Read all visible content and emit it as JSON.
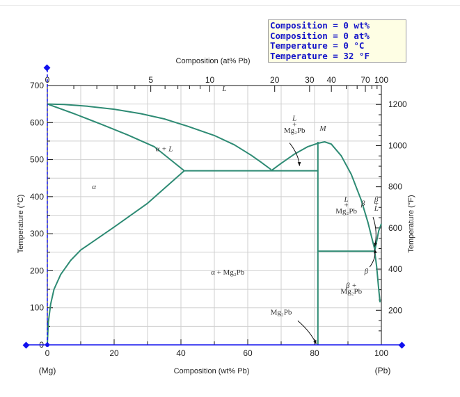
{
  "readout": {
    "wt": "Composition = 0 wt%",
    "at": "Composition = 0 at%",
    "tc": "Temperature = 0 °C",
    "tf": "Temperature = 32 °F"
  },
  "colors": {
    "phase_line": "#2e8b74",
    "grid": "#cfcfcf",
    "marker": "#1010ee",
    "readout_text": "#1515c8",
    "readout_bg": "#fefee4"
  },
  "chart_data": {
    "type": "line",
    "x_axis": {
      "label": "Composition (wt% Pb)",
      "range": [
        0,
        100
      ],
      "ticks": [
        0,
        20,
        40,
        60,
        80,
        100
      ]
    },
    "x_axis_top": {
      "label": "Composition (at% Pb)",
      "ticks": [
        0,
        5,
        10,
        20,
        30,
        40,
        70,
        100
      ]
    },
    "y_axis": {
      "label": "Temperature (°C)",
      "range": [
        0,
        700
      ],
      "ticks": [
        0,
        100,
        200,
        300,
        400,
        500,
        600,
        700
      ]
    },
    "y_axis_right": {
      "label": "Temperature (°F)",
      "ticks": [
        200,
        400,
        600,
        800,
        1000,
        1200
      ]
    },
    "end_labels": {
      "left": "(Mg)",
      "right": "(Pb)"
    },
    "grid": true,
    "series": [
      {
        "values": [
          [
            0,
            650
          ],
          [
            5,
            649
          ],
          [
            12,
            644
          ],
          [
            20,
            636
          ],
          [
            28,
            624
          ],
          [
            35,
            610
          ],
          [
            42,
            590
          ],
          [
            50,
            565
          ],
          [
            56,
            540
          ],
          [
            61,
            512
          ],
          [
            64,
            493
          ],
          [
            67,
            473
          ]
        ]
      },
      {
        "values": [
          [
            0,
            650
          ],
          [
            8,
            624
          ],
          [
            16,
            596
          ],
          [
            24,
            567
          ],
          [
            32,
            535
          ],
          [
            41,
            470
          ]
        ]
      },
      {
        "values": [
          [
            0,
            0
          ],
          [
            0.3,
            60
          ],
          [
            1,
            110
          ],
          [
            2,
            150
          ],
          [
            4,
            190
          ],
          [
            7,
            228
          ],
          [
            10,
            256
          ],
          [
            20,
            318
          ],
          [
            30,
            382
          ],
          [
            41,
            470
          ]
        ]
      },
      {
        "values": [
          [
            41,
            470
          ],
          [
            81,
            470
          ]
        ]
      },
      {
        "values": [
          [
            67,
            470
          ],
          [
            70,
            490
          ],
          [
            74,
            515
          ],
          [
            78,
            535
          ],
          [
            81,
            544
          ],
          [
            83,
            548
          ],
          [
            85,
            542
          ],
          [
            88,
            510
          ],
          [
            91,
            460
          ],
          [
            94,
            390
          ],
          [
            96,
            330
          ],
          [
            98,
            258
          ]
        ]
      },
      {
        "values": [
          [
            81,
            0
          ],
          [
            81,
            548
          ]
        ]
      },
      {
        "values": [
          [
            81,
            253
          ],
          [
            98,
            253
          ]
        ]
      },
      {
        "values": [
          [
            98,
            253
          ],
          [
            98.6,
            280
          ],
          [
            99.2,
            308
          ],
          [
            100,
            327
          ]
        ]
      },
      {
        "values": [
          [
            98,
            253
          ],
          [
            98.6,
            210
          ],
          [
            99.2,
            150
          ],
          [
            99.6,
            115
          ]
        ]
      }
    ],
    "phase_labels": [
      {
        "text": "L",
        "x": 53,
        "y": 685
      },
      {
        "text": "α + L",
        "x": 35,
        "y": 523
      },
      {
        "text": "α",
        "x": 14,
        "y": 420
      },
      {
        "text": "α + Mg₂Pb",
        "x": 54,
        "y": 190
      },
      {
        "text": "L",
        "x": 74,
        "y": 605
      },
      {
        "text": "+",
        "x": 74,
        "y": 588
      },
      {
        "text": "Mg₂Pb",
        "x": 74,
        "y": 572
      },
      {
        "text": "M",
        "x": 82.5,
        "y": 578
      },
      {
        "text": "L",
        "x": 89.5,
        "y": 387
      },
      {
        "text": "+",
        "x": 89.5,
        "y": 371
      },
      {
        "text": "Mg₂Pb",
        "x": 89.5,
        "y": 355
      },
      {
        "text": "β",
        "x": 94.5,
        "y": 375
      },
      {
        "text": "β",
        "x": 98.5,
        "y": 387
      },
      {
        "text": "+",
        "x": 98.5,
        "y": 374
      },
      {
        "text": "L",
        "x": 98.5,
        "y": 362
      },
      {
        "text": "β",
        "x": 95.5,
        "y": 192
      },
      {
        "text": "β +",
        "x": 91,
        "y": 154
      },
      {
        "text": "Mg₂Pb",
        "x": 91,
        "y": 138
      },
      {
        "text": "Mg₂Pb",
        "x": 70,
        "y": 82
      }
    ],
    "arrows": [
      {
        "from": [
          72.5,
          545
        ],
        "to": [
          75.5,
          483
        ]
      },
      {
        "from": [
          97.5,
          345
        ],
        "to": [
          98,
          265
        ]
      },
      {
        "from": [
          96.5,
          210
        ],
        "to": [
          98,
          258
        ]
      },
      {
        "from": [
          75,
          65
        ],
        "to": [
          80.5,
          2
        ]
      }
    ]
  }
}
